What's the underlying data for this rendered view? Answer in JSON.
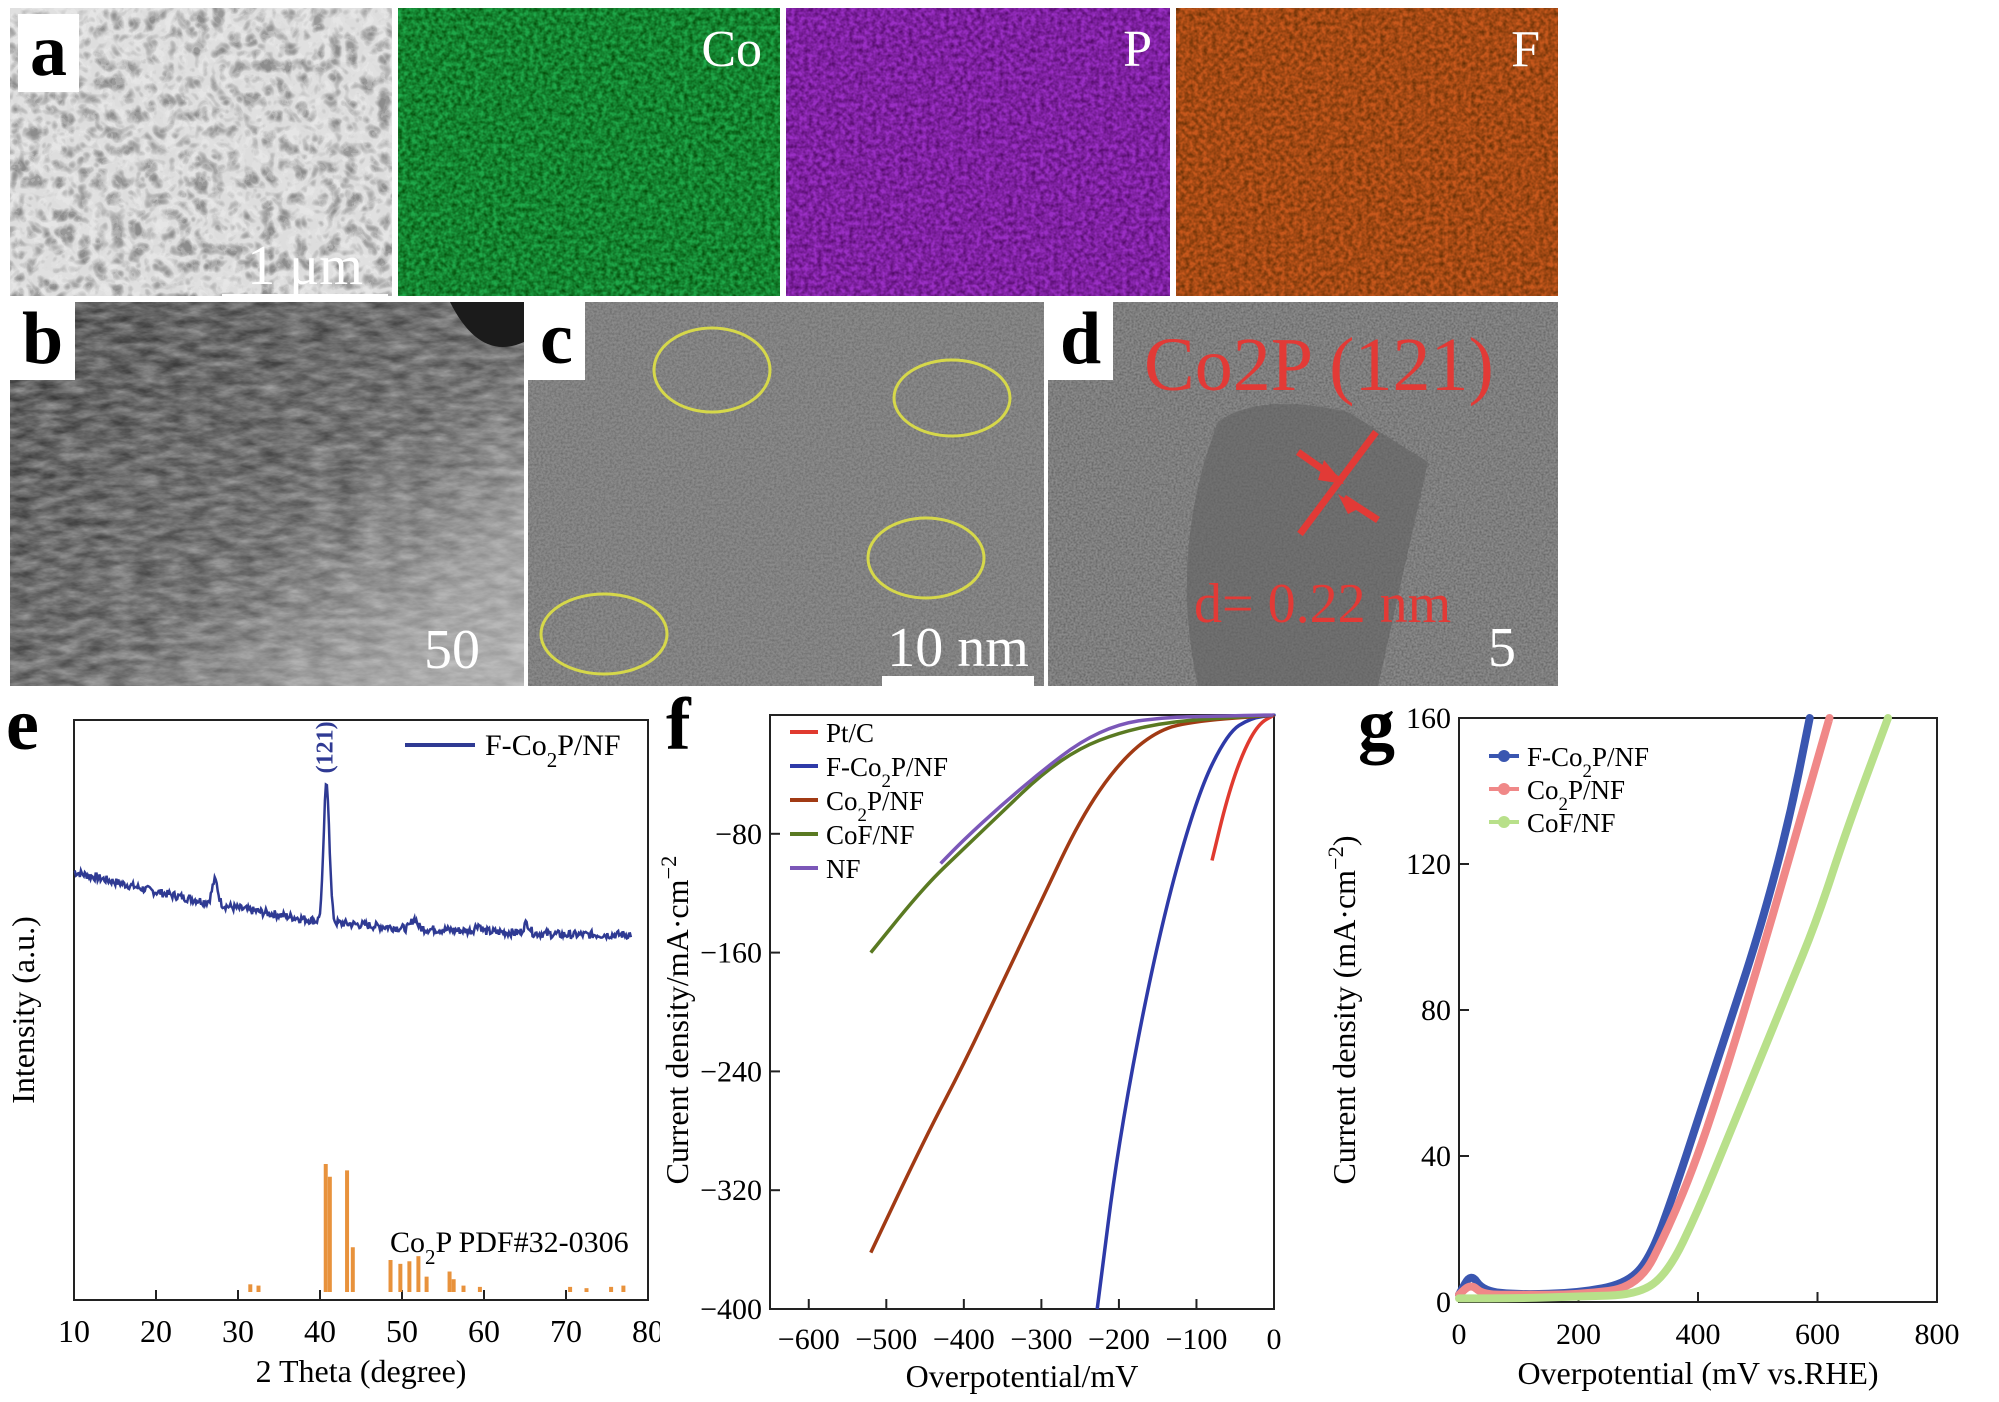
{
  "panels": {
    "a": {
      "label": "a",
      "scale_bar": "1 μm",
      "maps": [
        {
          "element": "Co",
          "color": "#1fa84a"
        },
        {
          "element": "P",
          "color": "#9a2fc4"
        },
        {
          "element": "F",
          "color": "#c8581c"
        }
      ]
    },
    "b": {
      "label": "b",
      "scale_bar": "50 nm"
    },
    "c": {
      "label": "c",
      "scale_bar": "10 nm"
    },
    "d": {
      "label": "d",
      "scale_bar": "5 nm",
      "annotation": "Co2P (121)",
      "spacing": "d= 0.22 nm"
    },
    "e": {
      "label": "e"
    },
    "f": {
      "label": "f"
    },
    "g": {
      "label": "g"
    }
  },
  "chart_data": [
    {
      "id": "e",
      "type": "line",
      "xlabel": "2 Theta (degree)",
      "ylabel": "Intensity (a.u.)",
      "xlim": [
        10,
        80
      ],
      "xticks": [
        10,
        20,
        30,
        40,
        50,
        60,
        70,
        80
      ],
      "legend": "F-Co2P/NF",
      "peak_label": "(121)",
      "reference_label": "Co2P PDF#32-0306",
      "colors": {
        "pattern": "#2f3a93",
        "reference": "#e8923c"
      },
      "pattern": {
        "baseline": [
          [
            10,
            0.6
          ],
          [
            20,
            0.54
          ],
          [
            30,
            0.49
          ],
          [
            40,
            0.45
          ],
          [
            50,
            0.43
          ],
          [
            60,
            0.42
          ],
          [
            70,
            0.41
          ],
          [
            78,
            0.41
          ]
        ],
        "peaks": [
          [
            27.2,
            0.07
          ],
          [
            40.8,
            0.42
          ],
          [
            51.5,
            0.03
          ],
          [
            59.3,
            0.02
          ],
          [
            65.2,
            0.03
          ]
        ]
      },
      "reference": [
        [
          31.5,
          0.06
        ],
        [
          32.5,
          0.05
        ],
        [
          40.7,
          1.0
        ],
        [
          41.2,
          0.9
        ],
        [
          43.3,
          0.95
        ],
        [
          44.0,
          0.35
        ],
        [
          48.6,
          0.25
        ],
        [
          49.8,
          0.22
        ],
        [
          50.9,
          0.24
        ],
        [
          52.0,
          0.28
        ],
        [
          53.0,
          0.12
        ],
        [
          55.8,
          0.16
        ],
        [
          56.3,
          0.1
        ],
        [
          57.5,
          0.05
        ],
        [
          59.5,
          0.04
        ],
        [
          70.5,
          0.04
        ],
        [
          72.5,
          0.03
        ],
        [
          75.5,
          0.04
        ],
        [
          77.0,
          0.05
        ]
      ]
    },
    {
      "id": "f",
      "type": "line",
      "xlabel": "Overpotential/mV",
      "ylabel": "Current density/mA·cm⁻²",
      "xlim": [
        -650,
        0
      ],
      "ylim": [
        -400,
        0
      ],
      "xticks": [
        -600,
        -500,
        -400,
        -300,
        -200,
        -100,
        0
      ],
      "yticks": [
        -80,
        -160,
        -240,
        -320,
        -400
      ],
      "series": [
        {
          "name": "Pt/C",
          "color": "#e03a2f",
          "points": [
            [
              -80,
              -98
            ],
            [
              -60,
              -55
            ],
            [
              -40,
              -25
            ],
            [
              -20,
              -6
            ],
            [
              0,
              0
            ]
          ]
        },
        {
          "name": "F-Co2P/NF",
          "color": "#2e3aa8",
          "points": [
            [
              -228,
              -400
            ],
            [
              -200,
              -285
            ],
            [
              -150,
              -150
            ],
            [
              -100,
              -55
            ],
            [
              -60,
              -12
            ],
            [
              -30,
              -2
            ],
            [
              0,
              0
            ]
          ]
        },
        {
          "name": "Co2P/NF",
          "color": "#a13a14",
          "points": [
            [
              -520,
              -362
            ],
            [
              -450,
              -285
            ],
            [
              -400,
              -235
            ],
            [
              -350,
              -180
            ],
            [
              -300,
              -125
            ],
            [
              -250,
              -70
            ],
            [
              -200,
              -32
            ],
            [
              -150,
              -10
            ],
            [
              -100,
              -4
            ],
            [
              0,
              0
            ]
          ]
        },
        {
          "name": "CoF/NF",
          "color": "#5a7a22",
          "points": [
            [
              -520,
              -160
            ],
            [
              -450,
              -115
            ],
            [
              -400,
              -90
            ],
            [
              -350,
              -65
            ],
            [
              -300,
              -40
            ],
            [
              -250,
              -22
            ],
            [
              -200,
              -12
            ],
            [
              -150,
              -6
            ],
            [
              -100,
              -3
            ],
            [
              0,
              0
            ]
          ]
        },
        {
          "name": "NF",
          "color": "#7b57b8",
          "points": [
            [
              -430,
              -100
            ],
            [
              -400,
              -84
            ],
            [
              -350,
              -60
            ],
            [
              -300,
              -38
            ],
            [
              -250,
              -18
            ],
            [
              -200,
              -6
            ],
            [
              -150,
              -2
            ],
            [
              -100,
              -1
            ],
            [
              0,
              0
            ]
          ]
        }
      ]
    },
    {
      "id": "g",
      "type": "line",
      "xlabel": "Overpotential (mV vs.RHE)",
      "ylabel": "Current density (mA·cm⁻²)",
      "xlim": [
        0,
        800
      ],
      "ylim": [
        0,
        160
      ],
      "xticks": [
        0,
        200,
        400,
        600,
        800
      ],
      "yticks": [
        0,
        40,
        80,
        120,
        160
      ],
      "series": [
        {
          "name": "F-Co2P/NF",
          "color": "#3a56b0",
          "points": [
            [
              0,
              2
            ],
            [
              20,
              8
            ],
            [
              40,
              3
            ],
            [
              100,
              2
            ],
            [
              200,
              2.5
            ],
            [
              280,
              5
            ],
            [
              320,
              12
            ],
            [
              360,
              30
            ],
            [
              400,
              50
            ],
            [
              450,
              75
            ],
            [
              500,
              100
            ],
            [
              550,
              130
            ],
            [
              587,
              160
            ]
          ]
        },
        {
          "name": "Co2P/NF",
          "color": "#f08888",
          "points": [
            [
              0,
              2
            ],
            [
              20,
              5
            ],
            [
              40,
              2
            ],
            [
              100,
              2
            ],
            [
              200,
              2
            ],
            [
              300,
              4
            ],
            [
              350,
              20
            ],
            [
              400,
              40
            ],
            [
              450,
              65
            ],
            [
              500,
              92
            ],
            [
              550,
              120
            ],
            [
              620,
              160
            ]
          ]
        },
        {
          "name": "CoF/NF",
          "color": "#b8e08a",
          "points": [
            [
              0,
              1
            ],
            [
              100,
              1
            ],
            [
              200,
              1.5
            ],
            [
              300,
              2
            ],
            [
              350,
              8
            ],
            [
              400,
              25
            ],
            [
              450,
              45
            ],
            [
              500,
              65
            ],
            [
              550,
              85
            ],
            [
              600,
              105
            ],
            [
              650,
              130
            ],
            [
              718,
              160
            ]
          ]
        }
      ]
    }
  ]
}
